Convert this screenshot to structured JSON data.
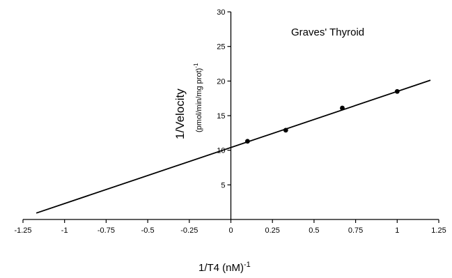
{
  "chart_data": {
    "type": "scatter",
    "title": "",
    "annotation": "Graves' Thyroid",
    "xlabel": "1/T4  (nM)",
    "xlabel_sup": "-1",
    "ylabel": "1/Velocity",
    "ylabel_unit": "(pmol/min/mg prot)",
    "ylabel_unit_sup": "-1",
    "xlim": [
      -1.25,
      1.25
    ],
    "ylim": [
      0,
      30
    ],
    "x_ticks": [
      -1.25,
      -1,
      -0.75,
      -0.5,
      -0.25,
      0,
      0.25,
      0.5,
      0.75,
      1,
      1.25
    ],
    "x_tick_labels": [
      "-1.25",
      "-1",
      "-0.75",
      "-0.5",
      "-0.25",
      "0",
      "0.25",
      "0.5",
      "0.75",
      "1",
      "1.25"
    ],
    "y_ticks": [
      5,
      10,
      15,
      20,
      25,
      30
    ],
    "y_tick_labels": [
      "5",
      "10",
      "15",
      "20",
      "25",
      "30"
    ],
    "grid": false,
    "series": [
      {
        "points": [
          {
            "x": 0.1,
            "y": 11.3
          },
          {
            "x": 0.33,
            "y": 12.9
          },
          {
            "x": 0.67,
            "y": 16.1
          },
          {
            "x": 1.0,
            "y": 18.5
          }
        ]
      }
    ],
    "fit_line": {
      "x_start": -1.17,
      "x_end": 1.2,
      "slope": 8.1,
      "intercept": 10.4
    }
  }
}
